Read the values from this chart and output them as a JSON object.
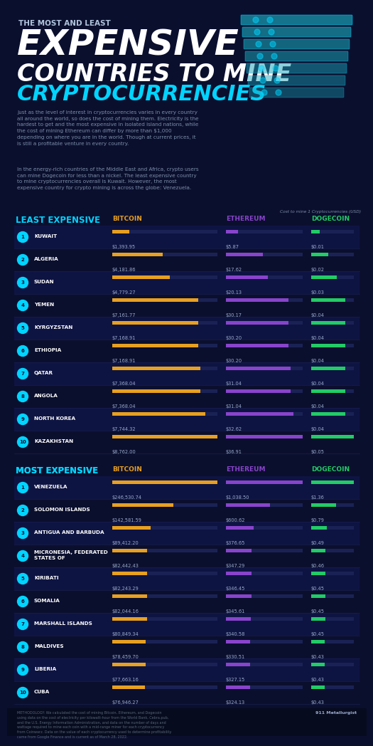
{
  "bg_color": "#0b0f2e",
  "title_line1": "THE MOST AND LEAST",
  "title_line2": "EXPENSIVE",
  "title_line3": "COUNTRIES TO MINE",
  "title_line4": "CRYPTOCURRENCIES",
  "body_text1": "Just as the level of interest in cryptocurrencies varies in every country\nall around the world, so does the cost of mining them. Electricity is the\nhardest to get and the most expensive in isolated island nations, while\nthe cost of mining Ethereum can differ by more than $1,000\ndepending on where you are in the world. Though at current prices, it\nis still a profitable venture in every country.",
  "body_text2": "In the energy-rich countries of the Middle East and Africa, crypto users\ncan mine Dogecoin for less than a nickel. The least expensive country\nto mine cryptocurrencies overall is Kuwait. However, the most\nexpensive country for crypto mining is across the globe: Venezuela.",
  "axis_label": "Cost to mine 1 Cryptocurrencies (USD)",
  "least_label": "LEAST EXPENSIVE",
  "most_label": "MOST EXPENSIVE",
  "col_bitcoin": "BITCOIN",
  "col_ethereum": "ETHEREUM",
  "col_dogecoin": "DOGECOIN",
  "bitcoin_color": "#e8a020",
  "ethereum_color": "#8844cc",
  "dogecoin_color": "#22cc66",
  "bar_bg_color": "#1a2255",
  "least_label_color": "#00d4ff",
  "most_label_color": "#00d4ff",
  "bitcoin_label_color": "#e8a020",
  "ethereum_label_color": "#8844cc",
  "dogecoin_label_color": "#22cc66",
  "text_color": "#ffffff",
  "dim_text_color": "#7788aa",
  "number_color": "#99aacc",
  "row_even_color": "#0e1442",
  "row_odd_color": "#0b0f2e",
  "circle_color": "#00d4ff",
  "circle_text_color": "#0b0f2e",
  "separator_color": "#1a2255",
  "least_countries": [
    "KUWAIT",
    "ALGERIA",
    "SUDAN",
    "YEMEN",
    "KYRGYZSTAN",
    "ETHIOPIA",
    "QATAR",
    "ANGOLA",
    "NORTH KOREA",
    "KAZAKHSTAN"
  ],
  "least_bitcoin": [
    1393.95,
    4181.86,
    4779.27,
    7161.77,
    7168.91,
    7168.91,
    7368.04,
    7368.04,
    7744.32,
    8762.0
  ],
  "least_ethereum": [
    5.87,
    17.62,
    20.13,
    30.17,
    30.2,
    30.2,
    31.04,
    31.04,
    32.62,
    36.91
  ],
  "least_dogecoin": [
    0.01,
    0.02,
    0.03,
    0.04,
    0.04,
    0.04,
    0.04,
    0.04,
    0.04,
    0.05
  ],
  "least_bitcoin_labels": [
    "$1,393.95",
    "$4,181.86",
    "$4,779.27",
    "$7,161.77",
    "$7,168.91",
    "$7,168.91",
    "$7,368.04",
    "$7,368.04",
    "$7,744.32",
    "$8,762.00"
  ],
  "least_ethereum_labels": [
    "$5.87",
    "$17.62",
    "$20.13",
    "$30.17",
    "$30.20",
    "$30.20",
    "$31.04",
    "$31.04",
    "$32.62",
    "$36.91"
  ],
  "least_dogecoin_labels": [
    "$0.01",
    "$0.02",
    "$0.03",
    "$0.04",
    "$0.04",
    "$0.04",
    "$0.04",
    "$0.04",
    "$0.04",
    "$0.05"
  ],
  "most_countries": [
    "VENEZUELA",
    "SOLOMON ISLANDS",
    "ANTIGUA AND BARBUDA",
    "MICRONESIA, FEDERATED\nSTATES OF",
    "KIRIBATI",
    "SOMALIA",
    "MARSHALL ISLANDS",
    "MALDIVES",
    "LIBERIA",
    "CUBA"
  ],
  "most_bitcoin": [
    246530.74,
    142581.59,
    89412.2,
    82442.43,
    82243.29,
    82044.16,
    80849.34,
    78459.7,
    77663.16,
    76946.27
  ],
  "most_ethereum": [
    1038.5,
    600.62,
    376.65,
    347.29,
    346.45,
    345.61,
    340.58,
    330.51,
    327.15,
    324.13
  ],
  "most_dogecoin": [
    1.36,
    0.79,
    0.49,
    0.46,
    0.45,
    0.45,
    0.45,
    0.43,
    0.43,
    0.43
  ],
  "most_bitcoin_labels": [
    "$246,530.74",
    "$142,581.59",
    "$89,412.20",
    "$82,442.43",
    "$82,243.29",
    "$82,044.16",
    "$80,849.34",
    "$78,459.70",
    "$77,663.16",
    "$76,946.27"
  ],
  "most_ethereum_labels": [
    "$1,038.50",
    "$600.62",
    "$376.65",
    "$347.29",
    "$346.45",
    "$345.61",
    "$340.58",
    "$330.51",
    "$327.15",
    "$324.13"
  ],
  "most_dogecoin_labels": [
    "$1.36",
    "$0.79",
    "$0.49",
    "$0.46",
    "$0.45",
    "$0.45",
    "$0.45",
    "$0.43",
    "$0.43",
    "$0.43"
  ],
  "footer_text": "METHODOLOGY: We calculated the cost of mining Bitcoin, Ethereum, and Dogecoin\nusing data on the cost of electricity per kilowatt-hour from the World Bank, Cebra.pub,\nand the U.S. Energy Information Administration, and data on the number of days and\nwattage required to mine each coin with a mid-range miner for each cryptocurrency\nfrom Coinwarz. Data on the value of each cryptocurrency used to determine profitability\ncame from Google Finance and is current as of March 28, 2022.",
  "brand_text": "911 Metallurgist"
}
